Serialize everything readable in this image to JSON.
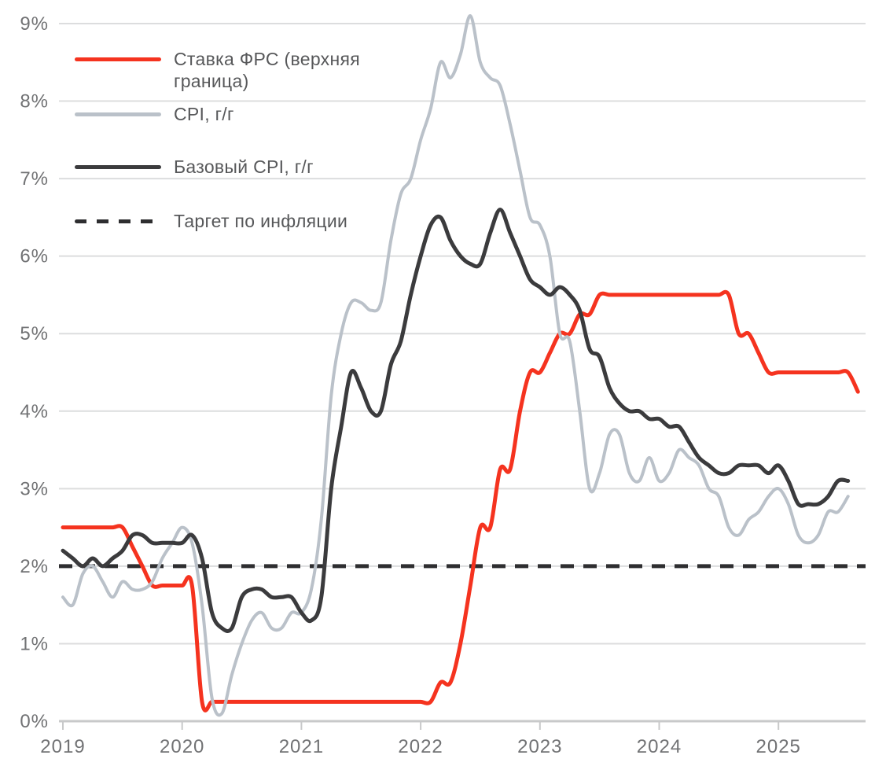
{
  "chart_data": {
    "type": "line",
    "title": "",
    "x_unit": "year",
    "y_unit": "percent",
    "x_start": 2019.0,
    "x_step_months": 1,
    "xlim": [
      2019.0,
      2025.75
    ],
    "ylim": [
      0,
      9
    ],
    "grid": "horizontal",
    "legend_position": "top-left",
    "x_ticks": [
      2019,
      2020,
      2021,
      2022,
      2023,
      2024,
      2025
    ],
    "x_tick_labels": [
      "2019",
      "2020",
      "2021",
      "2022",
      "2023",
      "2024",
      "2025"
    ],
    "y_ticks": [
      0,
      1,
      2,
      3,
      4,
      5,
      6,
      7,
      8,
      9
    ],
    "y_tick_labels": [
      "0%",
      "1%",
      "2%",
      "3%",
      "4%",
      "5%",
      "6%",
      "7%",
      "8%",
      "9%"
    ],
    "series": [
      {
        "name": "Ставка ФРС (верхняя граница)",
        "color": "#f5331f",
        "style": "solid",
        "width": 5,
        "values": [
          2.5,
          2.5,
          2.5,
          2.5,
          2.5,
          2.5,
          2.5,
          2.25,
          2.0,
          1.75,
          1.75,
          1.75,
          1.75,
          1.75,
          0.25,
          0.25,
          0.25,
          0.25,
          0.25,
          0.25,
          0.25,
          0.25,
          0.25,
          0.25,
          0.25,
          0.25,
          0.25,
          0.25,
          0.25,
          0.25,
          0.25,
          0.25,
          0.25,
          0.25,
          0.25,
          0.25,
          0.25,
          0.25,
          0.5,
          0.5,
          1.0,
          1.75,
          2.5,
          2.5,
          3.25,
          3.25,
          4.0,
          4.5,
          4.5,
          4.75,
          5.0,
          5.0,
          5.25,
          5.25,
          5.5,
          5.5,
          5.5,
          5.5,
          5.5,
          5.5,
          5.5,
          5.5,
          5.5,
          5.5,
          5.5,
          5.5,
          5.5,
          5.5,
          5.0,
          5.0,
          4.75,
          4.5,
          4.5,
          4.5,
          4.5,
          4.5,
          4.5,
          4.5,
          4.5,
          4.5,
          4.25
        ]
      },
      {
        "name": "CPI, г/г",
        "color": "#bac1c9",
        "style": "solid",
        "width": 4,
        "values": [
          1.6,
          1.5,
          1.9,
          2.0,
          1.8,
          1.6,
          1.8,
          1.7,
          1.7,
          1.8,
          2.1,
          2.3,
          2.5,
          2.3,
          1.5,
          0.3,
          0.1,
          0.6,
          1.0,
          1.3,
          1.4,
          1.2,
          1.2,
          1.4,
          1.4,
          1.7,
          2.6,
          4.2,
          5.0,
          5.4,
          5.4,
          5.3,
          5.4,
          6.2,
          6.8,
          7.0,
          7.5,
          7.9,
          8.5,
          8.3,
          8.6,
          9.1,
          8.5,
          8.3,
          8.2,
          7.7,
          7.1,
          6.5,
          6.4,
          6.0,
          5.0,
          4.9,
          4.0,
          3.0,
          3.2,
          3.7,
          3.7,
          3.2,
          3.1,
          3.4,
          3.1,
          3.2,
          3.5,
          3.4,
          3.3,
          3.0,
          2.9,
          2.5,
          2.4,
          2.6,
          2.7,
          2.9,
          3.0,
          2.8,
          2.4,
          2.3,
          2.4,
          2.7,
          2.7,
          2.9
        ]
      },
      {
        "name": "Базовый CPI, г/г",
        "color": "#3b3b3d",
        "style": "solid",
        "width": 5,
        "values": [
          2.2,
          2.1,
          2.0,
          2.1,
          2.0,
          2.1,
          2.2,
          2.4,
          2.4,
          2.3,
          2.3,
          2.3,
          2.3,
          2.4,
          2.1,
          1.4,
          1.2,
          1.2,
          1.6,
          1.7,
          1.7,
          1.6,
          1.6,
          1.6,
          1.4,
          1.3,
          1.6,
          3.0,
          3.8,
          4.5,
          4.3,
          4.0,
          4.0,
          4.6,
          4.9,
          5.5,
          6.0,
          6.4,
          6.5,
          6.2,
          6.0,
          5.9,
          5.9,
          6.3,
          6.6,
          6.3,
          6.0,
          5.7,
          5.6,
          5.5,
          5.6,
          5.5,
          5.3,
          4.8,
          4.7,
          4.3,
          4.1,
          4.0,
          4.0,
          3.9,
          3.9,
          3.8,
          3.8,
          3.6,
          3.4,
          3.3,
          3.2,
          3.2,
          3.3,
          3.3,
          3.3,
          3.2,
          3.3,
          3.1,
          2.8,
          2.8,
          2.8,
          2.9,
          3.1,
          3.1
        ]
      },
      {
        "name": "Таргет по инфляции",
        "color": "#2e2e30",
        "style": "dashed",
        "type": "hline",
        "value": 2.0,
        "width": 5,
        "dash": [
          17,
          12
        ]
      }
    ]
  }
}
